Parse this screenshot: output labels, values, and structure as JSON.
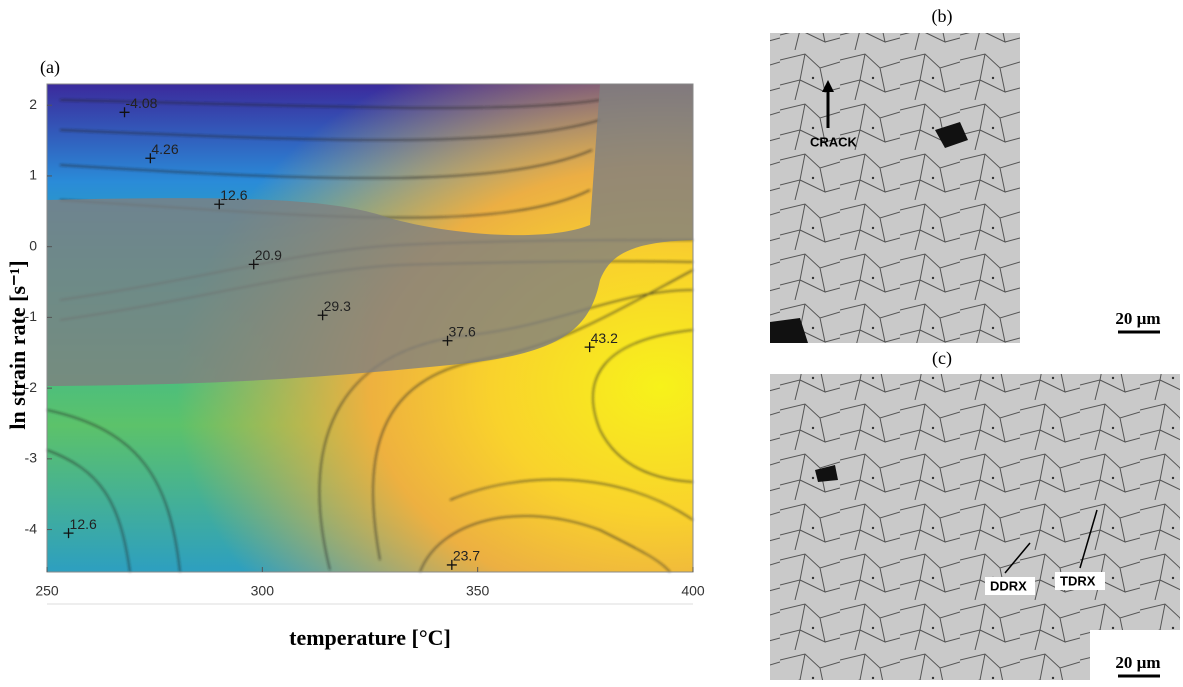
{
  "chart_data": {
    "type": "contour",
    "panel_label": "(a)",
    "xlabel": "temperature [°C]",
    "ylabel": "ln strain rate [s⁻¹]",
    "xlim": [
      250,
      400
    ],
    "ylim": [
      -4.6,
      2.3
    ],
    "xticks": [
      250,
      300,
      350,
      400
    ],
    "yticks": [
      -4,
      -3,
      -2,
      -1,
      0,
      1,
      2
    ],
    "x": [
      268,
      274,
      290,
      298,
      314,
      343,
      376,
      255,
      344
    ],
    "y": [
      1.9,
      1.25,
      0.6,
      -0.25,
      -0.97,
      -1.33,
      -1.42,
      -4.05,
      -4.5
    ],
    "values": [
      -4.08,
      4.26,
      12.6,
      20.9,
      29.3,
      37.6,
      43.2,
      12.6,
      23.7
    ]
  },
  "micrographs": [
    {
      "label": "(b)",
      "annotations": [
        "CRACK"
      ],
      "scale": "20 µm"
    },
    {
      "label": "(c)",
      "annotations": [
        "DDRX",
        "TDRX"
      ],
      "scale": "20 µm"
    }
  ]
}
